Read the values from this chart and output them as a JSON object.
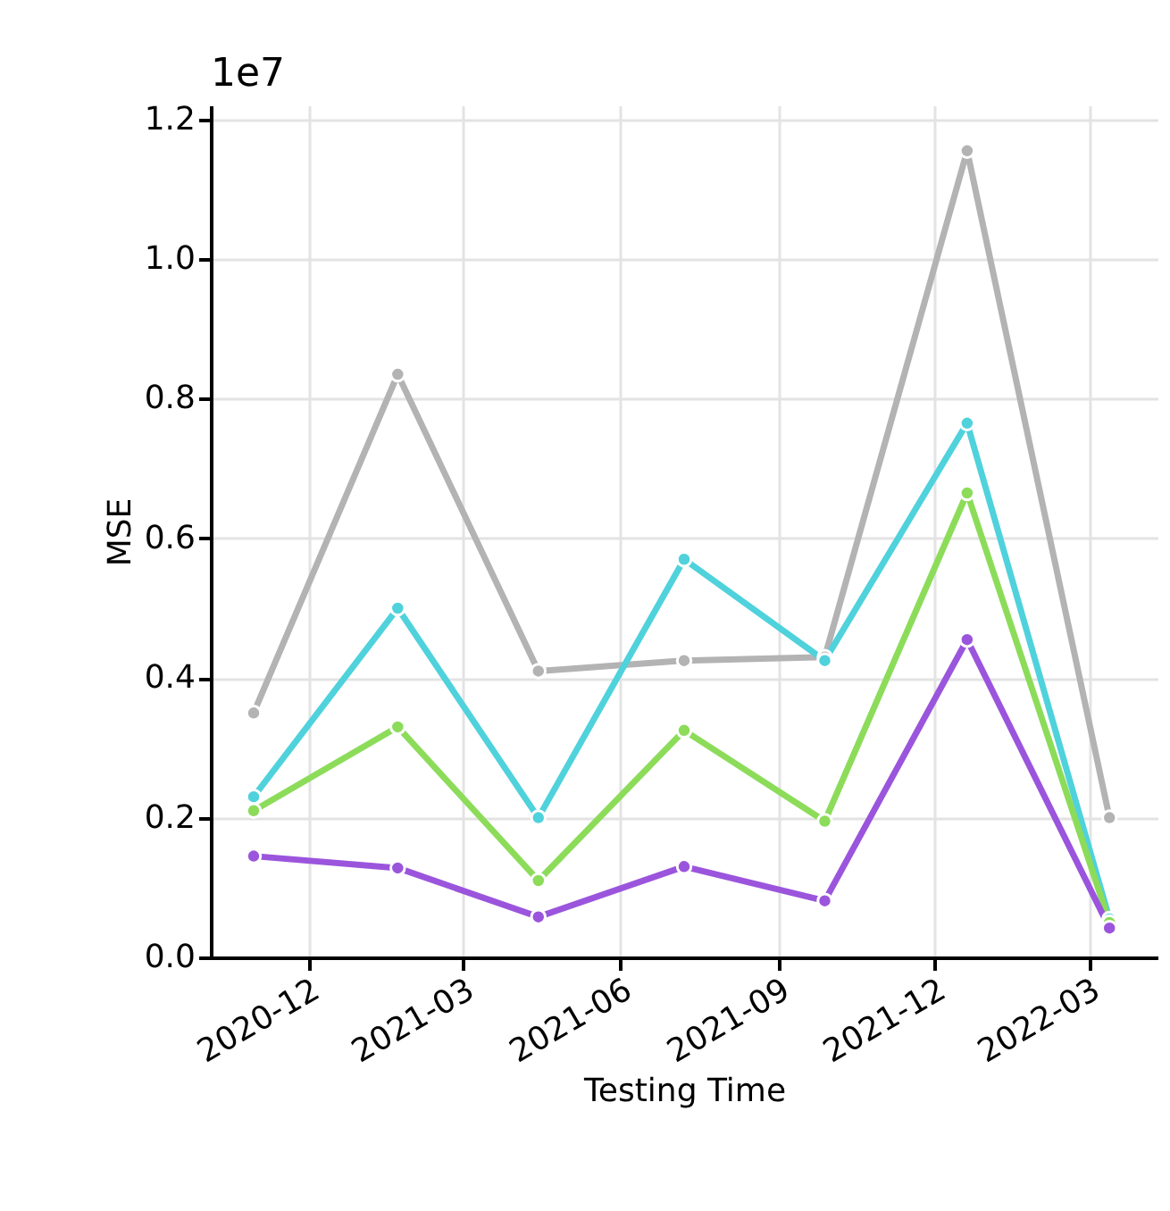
{
  "chart_data": {
    "type": "line",
    "xlabel": "Testing Time",
    "ylabel": "MSE",
    "annotations": [
      "1e7"
    ],
    "x": [
      "2020-10-30",
      "2021-01-22",
      "2021-04-14",
      "2021-07-08",
      "2021-09-28",
      "2021-12-20",
      "2022-03-13"
    ],
    "series": [
      {
        "color": "#b3b3b3",
        "values": [
          0.35,
          0.835,
          0.41,
          0.425,
          0.43,
          1.155,
          0.2
        ]
      },
      {
        "color": "#4fd2dc",
        "values": [
          0.23,
          0.5,
          0.2,
          0.57,
          0.425,
          0.765,
          0.055
        ]
      },
      {
        "color": "#8cdc5a",
        "values": [
          0.21,
          0.33,
          0.11,
          0.325,
          0.195,
          0.665,
          0.05
        ]
      },
      {
        "color": "#9b55dc",
        "values": [
          0.145,
          0.128,
          0.058,
          0.13,
          0.081,
          0.455,
          0.042
        ]
      }
    ],
    "xlim": [
      "2020-10-05",
      "2022-04-10"
    ],
    "xticks": [
      "2020-12",
      "2021-03",
      "2021-06",
      "2021-09",
      "2021-12",
      "2022-03"
    ],
    "ylim": [
      0,
      1.22
    ],
    "yticks": [
      {
        "value": 0,
        "label": "0.0"
      },
      0.2,
      0.4,
      0.6,
      0.8,
      {
        "value": 1,
        "label": "1.0"
      },
      1.2
    ],
    "grid": true,
    "marker": "circle",
    "line_style": "solid"
  }
}
